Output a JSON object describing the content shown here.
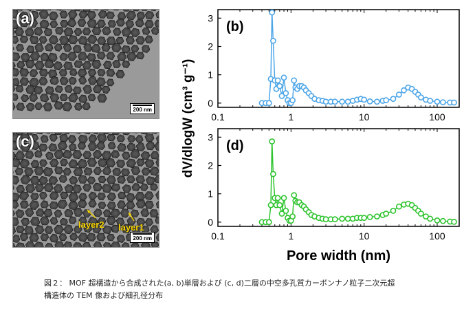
{
  "panels": {
    "a": {
      "label": "(a)",
      "scale": "200 nm"
    },
    "c": {
      "label": "(c)",
      "scale": "200 nm",
      "annotations": [
        "layer2",
        "layer1"
      ]
    }
  },
  "caption": {
    "line1": "図２： MOF 超構造から合成された(a, b)単層および (c, d)二層の中空多孔質カーボンナノ粒子二次元超",
    "line2": "構造体の TEM 像および細孔径分布"
  },
  "colors": {
    "b": "#4da6e8",
    "d": "#2ec42e",
    "tem_bg": "#9a9a9a",
    "particle": "#3a3a3a"
  },
  "chart_data": [
    {
      "type": "line",
      "panel_label": "(b)",
      "xscale": "log",
      "xlim": [
        0.1,
        200
      ],
      "ylim": [
        -0.15,
        3.3
      ],
      "xticks": [
        "0.1",
        "1",
        "10",
        "100"
      ],
      "yticks": [
        "0",
        "1",
        "2",
        "3"
      ],
      "series": [
        {
          "color": "#4da6e8",
          "x": [
            0.4,
            0.45,
            0.5,
            0.53,
            0.55,
            0.57,
            0.6,
            0.63,
            0.66,
            0.7,
            0.75,
            0.8,
            0.85,
            0.9,
            0.95,
            1.0,
            1.05,
            1.1,
            1.15,
            1.22,
            1.3,
            1.4,
            1.5,
            1.6,
            1.75,
            1.9,
            2.1,
            2.4,
            2.7,
            3.0,
            3.5,
            4.0,
            5.0,
            6.0,
            7.0,
            8.0,
            9.0,
            10,
            12,
            15,
            18,
            20,
            25,
            30,
            35,
            40,
            45,
            50,
            55,
            60,
            70,
            80,
            100,
            120,
            150,
            170
          ],
          "y": [
            0,
            0,
            0,
            0.85,
            3.2,
            2.2,
            0.8,
            0.5,
            0.8,
            0.6,
            0.25,
            0.9,
            0.35,
            0.1,
            0,
            0,
            0.1,
            0.8,
            0.55,
            0.5,
            0.6,
            0.6,
            0.55,
            0.45,
            0.35,
            0.25,
            0.15,
            0.1,
            0.08,
            0.05,
            0.05,
            0.05,
            0.05,
            0.05,
            0.08,
            0.12,
            0.15,
            0.12,
            0.06,
            0.05,
            0.08,
            0.1,
            0.15,
            0.3,
            0.45,
            0.55,
            0.5,
            0.4,
            0.3,
            0.2,
            0.12,
            0.08,
            0.05,
            0.03,
            0.02,
            0.02
          ]
        }
      ]
    },
    {
      "type": "line",
      "panel_label": "(d)",
      "xscale": "log",
      "xlim": [
        0.1,
        200
      ],
      "ylim": [
        -0.15,
        3.3
      ],
      "xticks": [
        "0.1",
        "1",
        "10",
        "100"
      ],
      "yticks": [
        "0",
        "1",
        "2",
        "3"
      ],
      "series": [
        {
          "color": "#2ec42e",
          "x": [
            0.4,
            0.45,
            0.5,
            0.53,
            0.55,
            0.57,
            0.6,
            0.63,
            0.66,
            0.7,
            0.75,
            0.8,
            0.85,
            0.9,
            0.95,
            1.0,
            1.05,
            1.1,
            1.15,
            1.22,
            1.3,
            1.4,
            1.5,
            1.6,
            1.75,
            1.9,
            2.1,
            2.4,
            2.7,
            3.0,
            3.5,
            4.0,
            5.0,
            6.0,
            7.0,
            8.0,
            9.0,
            10,
            12,
            15,
            18,
            20,
            25,
            30,
            35,
            40,
            45,
            50,
            55,
            60,
            70,
            80,
            100,
            120,
            150,
            170
          ],
          "y": [
            0,
            0,
            0,
            0.6,
            2.85,
            1.7,
            0.85,
            0.6,
            0.85,
            0.6,
            0.3,
            0.85,
            0.4,
            0.15,
            0.05,
            0.05,
            0.2,
            0.95,
            0.75,
            0.7,
            0.7,
            0.6,
            0.55,
            0.45,
            0.35,
            0.25,
            0.2,
            0.15,
            0.12,
            0.1,
            0.1,
            0.1,
            0.12,
            0.12,
            0.12,
            0.15,
            0.15,
            0.15,
            0.18,
            0.2,
            0.25,
            0.3,
            0.4,
            0.55,
            0.62,
            0.65,
            0.6,
            0.5,
            0.4,
            0.3,
            0.2,
            0.12,
            0.06,
            0.04,
            0.02,
            0.01
          ]
        }
      ]
    }
  ],
  "axis": {
    "ylabel": "dV/dlogW (cm³ g⁻¹)",
    "xlabel": "Pore width (nm)"
  }
}
